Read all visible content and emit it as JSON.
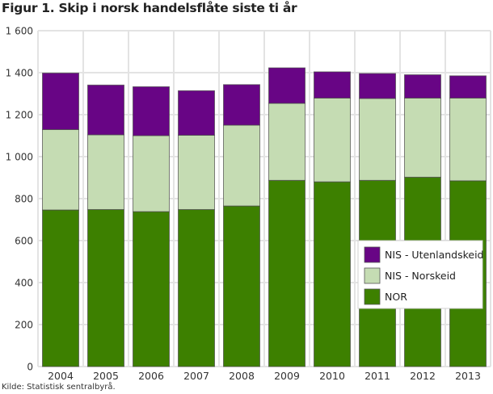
{
  "chart_data": {
    "type": "bar",
    "stacked": true,
    "title": "Figur 1. Skip i norsk handelsflåte siste ti år",
    "source": "Kilde: Statistisk sentralbyrå.",
    "xlabel": "",
    "ylabel": "",
    "categories": [
      "2004",
      "2005",
      "2006",
      "2007",
      "2008",
      "2009",
      "2010",
      "2011",
      "2012",
      "2013"
    ],
    "ylim": [
      0,
      1600
    ],
    "yticks": [
      0,
      200,
      400,
      600,
      800,
      1000,
      1200,
      1400,
      1600
    ],
    "ytick_labels": [
      "0",
      "200",
      "400",
      "600",
      "800",
      "1 000",
      "1 200",
      "1 400",
      "1 600"
    ],
    "grid": true,
    "legend_position": "right",
    "series": [
      {
        "name": "NOR",
        "color": "#3d8000",
        "values": [
          746,
          748,
          738,
          748,
          765,
          887,
          880,
          887,
          902,
          885
        ]
      },
      {
        "name": "NIS - Norskeid",
        "color": "#c5dcb3",
        "values": [
          383,
          356,
          362,
          354,
          385,
          367,
          399,
          390,
          377,
          394
        ]
      },
      {
        "name": "NIS - Utenlandskeid",
        "color": "#680585",
        "values": [
          269,
          237,
          233,
          212,
          193,
          169,
          125,
          119,
          111,
          106
        ]
      }
    ],
    "legend_order": [
      "NIS - Utenlandskeid",
      "NIS - Norskeid",
      "NOR"
    ]
  }
}
